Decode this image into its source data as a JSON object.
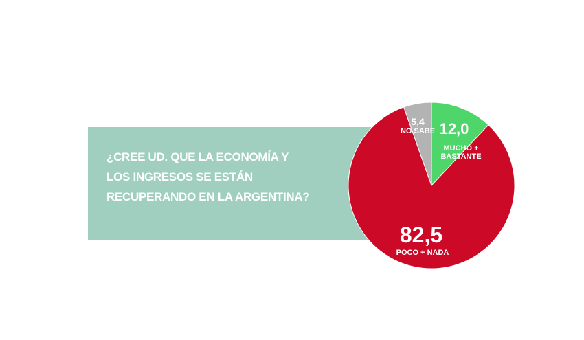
{
  "chart_data": {
    "type": "pie",
    "title": "¿CREE UD. QUE LA ECONOMÍA Y LOS INGRESOS SE ESTÁN RECUPERANDO EN LA ARGENTINA?",
    "categories": [
      "MUCHO + BASTANTE",
      "POCO + NADA",
      "NO SABE"
    ],
    "values": [
      12.0,
      82.5,
      5.4
    ],
    "value_labels": [
      "12,0",
      "82,5",
      "5,4"
    ],
    "colors": [
      "#4fd66b",
      "#cc0a27",
      "#b3b3b3"
    ]
  }
}
